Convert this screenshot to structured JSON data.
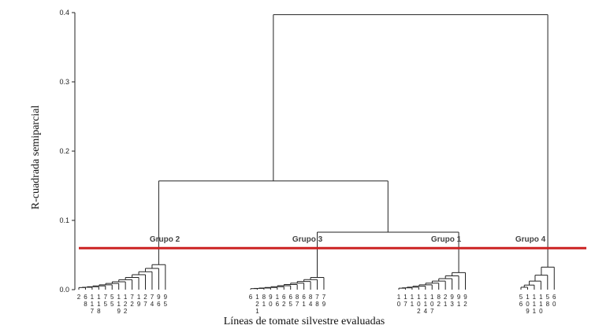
{
  "chart_data": {
    "type": "dendrogram",
    "xlabel": "Líneas de tomate silvestre evaluadas",
    "ylabel": "R-cuadrada semiparcial",
    "ylim": [
      0,
      0.4
    ],
    "yticks": [
      "0.0",
      "0.1",
      "0.2",
      "0.3",
      "0.4"
    ],
    "cut_line": {
      "y": 0.06,
      "color": "#cc2222"
    },
    "groups": [
      {
        "name": "Grupo 2",
        "leaves": [
          "2",
          "68",
          "117",
          "118",
          "75",
          "55",
          "119",
          "122",
          "72",
          "19",
          "27",
          "74",
          "96",
          "95"
        ]
      },
      {
        "name": "Grupo 3",
        "leaves": [
          "6",
          "121",
          "81",
          "90",
          "16",
          "62",
          "65",
          "87",
          "61",
          "84",
          "78",
          "79"
        ]
      },
      {
        "name": "Grupo 1",
        "leaves": [
          "10",
          "17",
          "11",
          "102",
          "114",
          "107",
          "82",
          "21",
          "93",
          "91",
          "92"
        ]
      },
      {
        "name": "Grupo 4",
        "leaves": [
          "56",
          "109",
          "111",
          "110",
          "58",
          "60"
        ]
      }
    ],
    "merges": [
      {
        "members": [
          "Grupo 2",
          "Grupo 3",
          "Grupo 1",
          "Grupo 4"
        ],
        "height": 0.397
      },
      {
        "members": [
          "Grupo 2",
          "Grupo 3",
          "Grupo 1"
        ],
        "height": 0.157
      },
      {
        "members": [
          "Grupo 3",
          "Grupo 1"
        ],
        "height": 0.083
      },
      {
        "members": [
          "Grupo 2"
        ],
        "height": 0.041
      },
      {
        "members": [
          "Grupo 4"
        ],
        "height": 0.037
      },
      {
        "members": [
          "Grupo 1"
        ],
        "height": 0.028
      },
      {
        "members": [
          "Grupo 3"
        ],
        "height": 0.02
      }
    ],
    "grid": false
  }
}
